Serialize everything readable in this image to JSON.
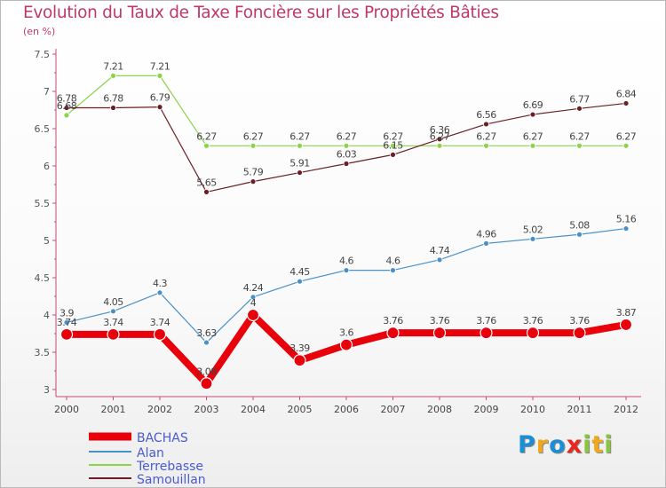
{
  "title": "Evolution du Taux de Taxe Foncière sur les Propriétés Bâties",
  "subtitle": "(en %)",
  "logo": {
    "p": "P",
    "r": "r",
    "o": "o",
    "x": "x",
    "i1": "i",
    "t": "t",
    "i2": "i"
  },
  "chart_data": {
    "type": "line",
    "title": "Evolution du Taux de Taxe Foncière sur les Propriétés Bâties",
    "ylabel": "(en %)",
    "xlabel": "",
    "ylim": [
      3,
      7.5
    ],
    "yticks": [
      "3",
      "3.5",
      "4",
      "4.5",
      "5",
      "5.5",
      "6",
      "6.5",
      "7",
      "7.5"
    ],
    "categories": [
      "2000",
      "2001",
      "2002",
      "2003",
      "2004",
      "2005",
      "2006",
      "2007",
      "2008",
      "2009",
      "2010",
      "2011",
      "2012"
    ],
    "series": [
      {
        "name": "BACHAS",
        "color": "#e8000b",
        "values": [
          3.74,
          3.74,
          3.74,
          3.08,
          4,
          3.39,
          3.6,
          3.76,
          3.76,
          3.76,
          3.76,
          3.76,
          3.87
        ],
        "labels": [
          "3.74",
          "3.74",
          "3.74",
          "3.08",
          "4",
          "3.39",
          "3.6",
          "3.76",
          "3.76",
          "3.76",
          "3.76",
          "3.76",
          "3.87"
        ]
      },
      {
        "name": "Alan",
        "color": "#4a90c8",
        "values": [
          3.9,
          4.05,
          4.3,
          3.63,
          4.24,
          4.45,
          4.6,
          4.6,
          4.74,
          4.96,
          5.02,
          5.08,
          5.16
        ],
        "labels": [
          "3.9",
          "4.05",
          "4.3",
          "3.63",
          "4.24",
          "4.45",
          "4.6",
          "4.6",
          "4.74",
          "4.96",
          "5.02",
          "5.08",
          "5.16"
        ]
      },
      {
        "name": "Terrebasse",
        "color": "#8bd44a",
        "values": [
          6.68,
          7.21,
          7.21,
          6.27,
          6.27,
          6.27,
          6.27,
          6.27,
          6.27,
          6.27,
          6.27,
          6.27,
          6.27
        ],
        "labels": [
          "6.68",
          "7.21",
          "7.21",
          "6.27",
          "6.27",
          "6.27",
          "6.27",
          "6.27",
          "6.27",
          "6.27",
          "6.27",
          "6.27",
          "6.27"
        ]
      },
      {
        "name": "Samouillan",
        "color": "#6b1f24",
        "values": [
          6.78,
          6.78,
          6.79,
          5.65,
          5.79,
          5.91,
          6.03,
          6.15,
          6.36,
          6.56,
          6.69,
          6.77,
          6.84
        ],
        "labels": [
          "6.78",
          "6.78",
          "6.79",
          "5.65",
          "5.79",
          "5.91",
          "6.03",
          "6.15",
          "6.36",
          "6.56",
          "6.69",
          "6.77",
          "6.84"
        ]
      }
    ],
    "legend_position": "bottom-left",
    "grid": false
  }
}
